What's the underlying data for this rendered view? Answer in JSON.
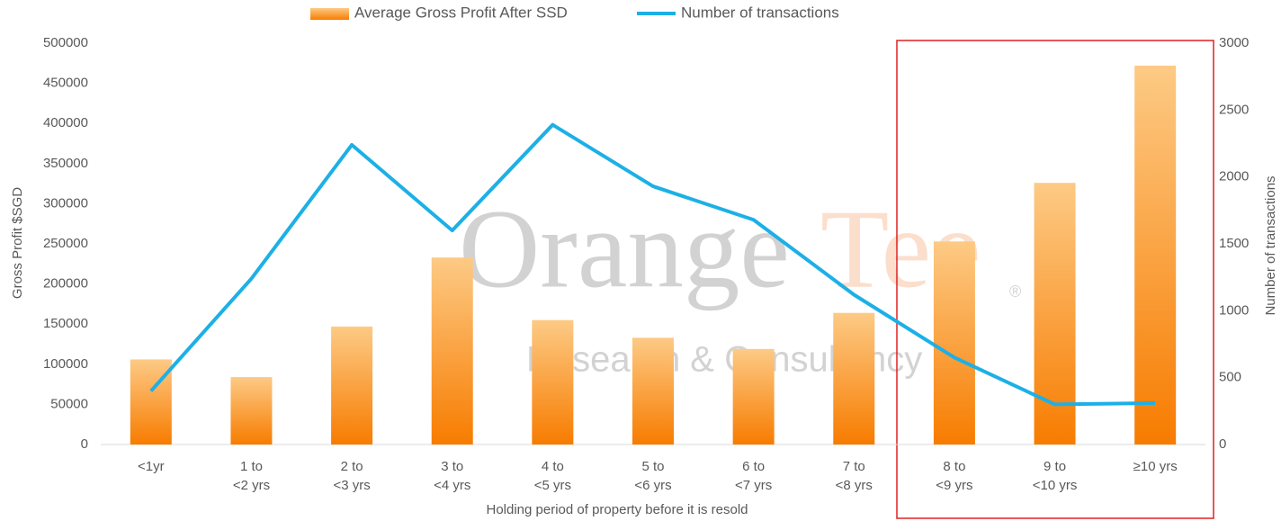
{
  "chart_data": {
    "type": "bar_line",
    "xlabel": "Holding period of property before it is resold",
    "ylabel": "Gross Profit $SGD",
    "y2label": "Number of transactions",
    "categories": [
      "<1yr",
      "1 to\n<2 yrs",
      "2 to\n<3 yrs",
      "3 to\n<4 yrs",
      "4 to\n<5 yrs",
      "5 to\n<6 yrs",
      "6 to\n<7 yrs",
      "7 to\n<8 yrs",
      "8 to\n<9 yrs",
      "9 to\n<10 yrs",
      "≥10 yrs"
    ],
    "series": [
      {
        "name": "Average Gross Profit After SSD",
        "type": "bar",
        "color": "#f98b12",
        "values": [
          106000,
          84000,
          147000,
          233000,
          155000,
          133000,
          119000,
          164000,
          253000,
          326000,
          472000
        ]
      },
      {
        "name": "Number of transactions",
        "type": "line",
        "axis": "y2",
        "color": "#1cb0e6",
        "values": [
          400,
          1240,
          2240,
          1600,
          2390,
          1930,
          1680,
          1120,
          650,
          300,
          310
        ]
      }
    ],
    "ylim": [
      0,
      500000
    ],
    "yticks": [
      0,
      50000,
      100000,
      150000,
      200000,
      250000,
      300000,
      350000,
      400000,
      450000,
      500000
    ],
    "y2lim": [
      0,
      3000
    ],
    "y2ticks": [
      0,
      500,
      1000,
      1500,
      2000,
      2500,
      3000
    ],
    "legend": "top",
    "watermark": {
      "brand": "Orange",
      "brand_accent": "Tee",
      "mark": "®",
      "tagline": "Research & Consultancy"
    }
  }
}
